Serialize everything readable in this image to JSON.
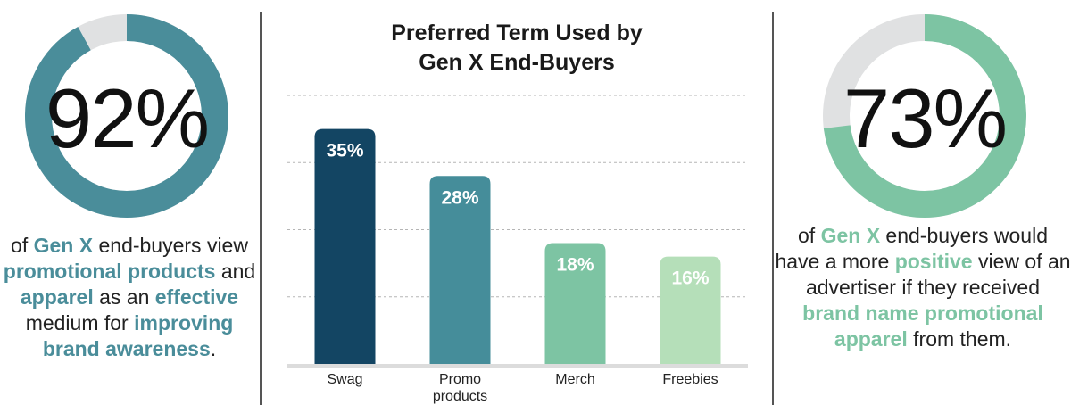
{
  "left_stat": {
    "percent_value": 92,
    "percent_label": "92%",
    "ring_color": "#4a8d9a",
    "track_color": "#e0e1e2",
    "text_parts": [
      {
        "t": "of ",
        "b": false
      },
      {
        "t": "Gen X",
        "b": true
      },
      {
        "t": " end-buyers view ",
        "b": false
      },
      {
        "t": "promotional products",
        "b": true
      },
      {
        "t": " and ",
        "b": false
      },
      {
        "t": "apparel",
        "b": true
      },
      {
        "t": " as an ",
        "b": false
      },
      {
        "t": "effective",
        "b": true
      },
      {
        "t": " medium for ",
        "b": false
      },
      {
        "t": "improving brand awareness",
        "b": true
      },
      {
        "t": ".",
        "b": false
      }
    ]
  },
  "right_stat": {
    "percent_value": 73,
    "percent_label": "73%",
    "ring_color": "#7dc4a3",
    "track_color": "#e0e1e2",
    "text_parts": [
      {
        "t": "of ",
        "b": false
      },
      {
        "t": "Gen X",
        "b": true
      },
      {
        "t": " end-buyers would have a more ",
        "b": false
      },
      {
        "t": "positive",
        "b": true
      },
      {
        "t": " view of an advertiser if they received ",
        "b": false
      },
      {
        "t": "brand name promotional apparel",
        "b": true
      },
      {
        "t": " from them.",
        "b": false
      }
    ]
  },
  "chart_data": {
    "type": "bar",
    "title": "Preferred Term Used by Gen X End-Buyers",
    "title_lines": [
      "Preferred Term Used by",
      "Gen X End-Buyers"
    ],
    "categories": [
      "Swag",
      "Promo products",
      "Merch",
      "Freebies"
    ],
    "category_lines": [
      [
        "Swag"
      ],
      [
        "Promo",
        "products"
      ],
      [
        "Merch"
      ],
      [
        "Freebies"
      ]
    ],
    "values": [
      35,
      28,
      18,
      16
    ],
    "value_labels": [
      "35%",
      "28%",
      "18%",
      "16%"
    ],
    "bar_colors": [
      "#134563",
      "#458d9a",
      "#7dc4a3",
      "#b5dfb9"
    ],
    "ylim": [
      0,
      40
    ],
    "grid": true,
    "grid_style": "dashed"
  }
}
